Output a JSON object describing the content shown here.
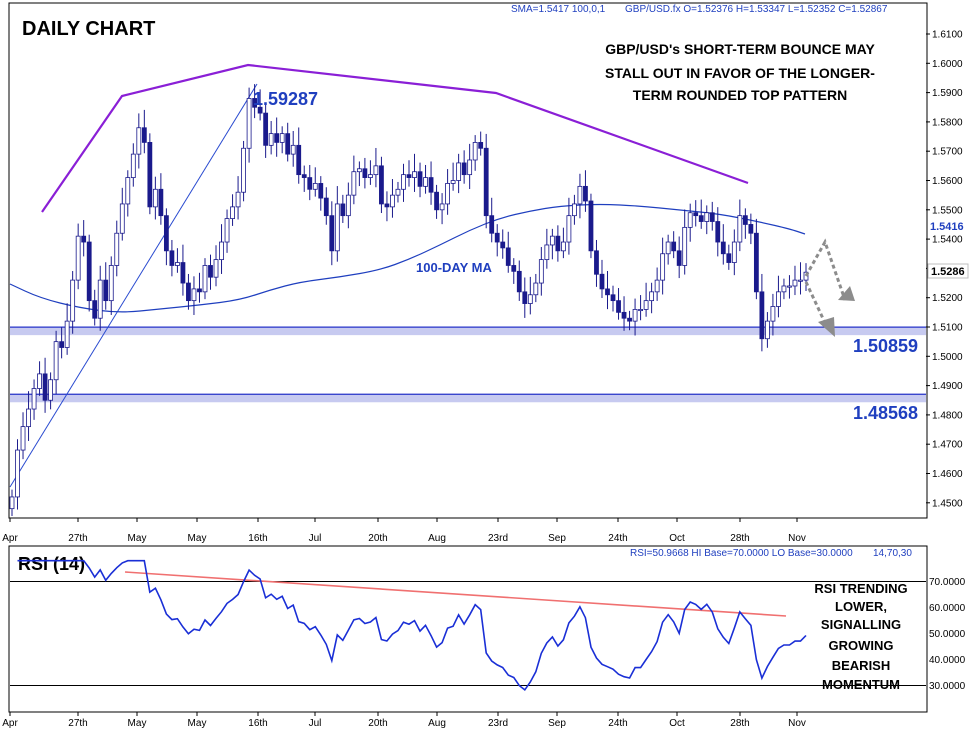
{
  "header": {
    "sma_text": "SMA=1.5417  100,0,1",
    "ohlc_text": "GBP/USD.fx O=1.52376 H=1.53347 L=1.52352 C=1.52867"
  },
  "rsi_header": {
    "values_text": "RSI=50.9668 HI Base=70.0000 LO Base=30.0000",
    "params_text": "14,70,30"
  },
  "chart_data": [
    {
      "type": "candlestick",
      "title": "DAILY CHART",
      "annotation_lines": [
        "GBP/USD's SHORT-TERM BOUNCE MAY",
        "STALL OUT IN FAVOR OF THE LONGER-",
        "TERM ROUNDED TOP PATTERN"
      ],
      "ylim": [
        1.445,
        1.6165
      ],
      "yticks": [
        "1.4500",
        "1.4600",
        "1.4700",
        "1.4800",
        "1.4900",
        "1.5000",
        "1.5100",
        "1.5200",
        "1.5300",
        "1.5400",
        "1.5500",
        "1.5600",
        "1.5700",
        "1.5800",
        "1.5900",
        "1.6000",
        "1.6100"
      ],
      "xticks": [
        "Apr",
        "27th",
        "May",
        "May",
        "16th",
        "Jul",
        "20th",
        "Aug",
        "23rd",
        "Sep",
        "24th",
        "Oct",
        "28th",
        "Nov"
      ],
      "last_price_label": "1.5286",
      "sma_label": "1.5416",
      "ma_label": "100-DAY MA",
      "peak_label": "1.59287",
      "peak_value": 1.59287,
      "levels": [
        {
          "label": "1.50859",
          "value": 1.50859
        },
        {
          "label": "1.48568",
          "value": 1.48568
        }
      ],
      "close": [
        1.452,
        1.468,
        1.476,
        1.482,
        1.489,
        1.494,
        1.485,
        1.492,
        1.505,
        1.503,
        1.512,
        1.526,
        1.541,
        1.539,
        1.519,
        1.513,
        1.526,
        1.519,
        1.531,
        1.542,
        1.552,
        1.561,
        1.569,
        1.578,
        1.573,
        1.551,
        1.557,
        1.548,
        1.536,
        1.531,
        1.532,
        1.525,
        1.519,
        1.523,
        1.522,
        1.531,
        1.527,
        1.533,
        1.539,
        1.547,
        1.551,
        1.556,
        1.571,
        1.588,
        1.585,
        1.583,
        1.572,
        1.576,
        1.573,
        1.576,
        1.569,
        1.572,
        1.562,
        1.561,
        1.557,
        1.559,
        1.554,
        1.548,
        1.536,
        1.552,
        1.548,
        1.555,
        1.563,
        1.564,
        1.561,
        1.562,
        1.565,
        1.552,
        1.551,
        1.555,
        1.557,
        1.562,
        1.561,
        1.563,
        1.558,
        1.561,
        1.556,
        1.55,
        1.552,
        1.559,
        1.56,
        1.566,
        1.562,
        1.567,
        1.573,
        1.571,
        1.548,
        1.542,
        1.539,
        1.537,
        1.531,
        1.529,
        1.522,
        1.518,
        1.521,
        1.525,
        1.533,
        1.538,
        1.541,
        1.536,
        1.539,
        1.548,
        1.552,
        1.558,
        1.553,
        1.536,
        1.528,
        1.523,
        1.521,
        1.519,
        1.515,
        1.513,
        1.512,
        1.516,
        1.516,
        1.519,
        1.522,
        1.526,
        1.535,
        1.539,
        1.536,
        1.531,
        1.544,
        1.549,
        1.548,
        1.546,
        1.549,
        1.546,
        1.539,
        1.535,
        1.532,
        1.539,
        1.548,
        1.545,
        1.542,
        1.522,
        1.506,
        1.512,
        1.517,
        1.522,
        1.524,
        1.524,
        1.526,
        1.526,
        1.5287
      ],
      "rsi": {
        "title": "RSI (14)",
        "ylim": [
          20,
          80
        ],
        "yticks": [
          "30.0000",
          "40.0000",
          "50.0000",
          "60.0000",
          "70.0000"
        ],
        "base_hi": 70,
        "base_lo": 30,
        "annotation_lines": [
          "RSI TRENDING",
          "LOWER,",
          "SIGNALLING",
          "GROWING",
          "BEARISH",
          "MOMENTUM"
        ]
      }
    }
  ]
}
